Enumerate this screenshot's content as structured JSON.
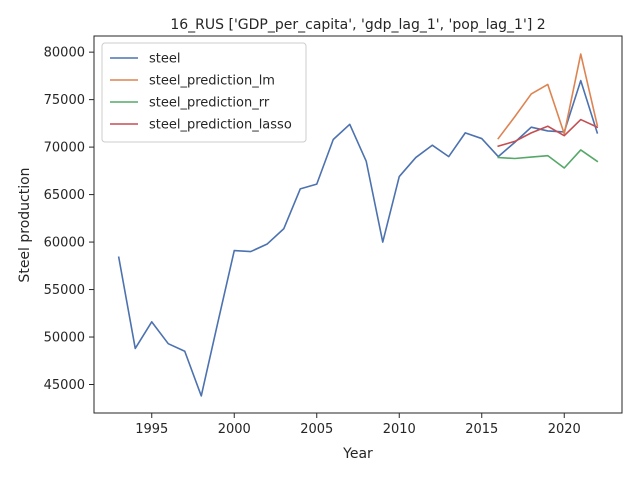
{
  "chart_data": {
    "type": "line",
    "title": "16_RUS ['GDP_per_capita', 'gdp_lag_1', 'pop_lag_1'] 2",
    "xlabel": "Year",
    "ylabel": "Steel production",
    "xlim": [
      1991.5,
      2023.5
    ],
    "ylim": [
      42000,
      81700
    ],
    "xticks": [
      1995,
      2000,
      2005,
      2010,
      2015,
      2020
    ],
    "yticks": [
      45000,
      50000,
      55000,
      60000,
      65000,
      70000,
      75000,
      80000
    ],
    "grid": false,
    "legend_position": "top-left",
    "series": [
      {
        "name": "steel",
        "color": "#4c72b0",
        "x": [
          1993,
          1994,
          1995,
          1996,
          1997,
          1998,
          1999,
          2000,
          2001,
          2002,
          2003,
          2004,
          2005,
          2006,
          2007,
          2008,
          2009,
          2010,
          2011,
          2012,
          2013,
          2014,
          2015,
          2016,
          2017,
          2018,
          2019,
          2020,
          2021,
          2022
        ],
        "values": [
          58400,
          48800,
          51600,
          49300,
          48500,
          43800,
          51500,
          59100,
          59000,
          59800,
          61400,
          65600,
          66100,
          70800,
          72400,
          68500,
          60000,
          66900,
          68900,
          70200,
          69000,
          71500,
          70900,
          69000,
          70500,
          72100,
          71700,
          71600,
          77000,
          71500
        ]
      },
      {
        "name": "steel_prediction_lm",
        "color": "#dd8452",
        "x": [
          2016,
          2017,
          2018,
          2019,
          2020,
          2021,
          2022
        ],
        "values": [
          70900,
          73200,
          75600,
          76600,
          71400,
          79800,
          72300
        ]
      },
      {
        "name": "steel_prediction_rr",
        "color": "#55a868",
        "x": [
          2016,
          2017,
          2018,
          2019,
          2020,
          2021,
          2022
        ],
        "values": [
          68900,
          68800,
          68950,
          69100,
          67800,
          69700,
          68500
        ]
      },
      {
        "name": "steel_prediction_lasso",
        "color": "#c44e52",
        "x": [
          2016,
          2017,
          2018,
          2019,
          2020,
          2021,
          2022
        ],
        "values": [
          70100,
          70600,
          71500,
          72200,
          71200,
          72900,
          72100
        ]
      }
    ]
  }
}
